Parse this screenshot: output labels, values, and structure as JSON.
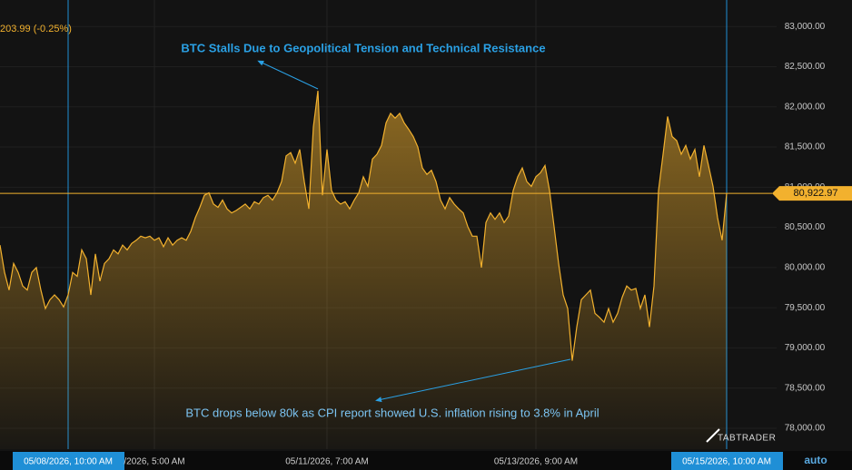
{
  "chart_data": {
    "type": "area",
    "change_text": "203.99 (-0.25%)",
    "annotations": [
      "BTC Stalls Due to Geopolitical Tension and Technical Resistance",
      "BTC drops below 80k as CPI report showed U.S. inflation rising to 3.8% in April"
    ],
    "brand": "TABTRADER",
    "scale_mode": "auto",
    "color": "#f2b12e",
    "values": [
      80280,
      79940,
      79720,
      80050,
      79940,
      79770,
      79720,
      79940,
      80000,
      79720,
      79490,
      79600,
      79660,
      79600,
      79510,
      79660,
      79940,
      79890,
      80220,
      80110,
      79660,
      80170,
      79830,
      80050,
      80110,
      80220,
      80170,
      80280,
      80220,
      80300,
      80340,
      80390,
      80370,
      80390,
      80340,
      80370,
      80260,
      80370,
      80280,
      80340,
      80370,
      80340,
      80450,
      80620,
      80750,
      80900,
      80930,
      80790,
      80750,
      80840,
      80730,
      80680,
      80710,
      80750,
      80790,
      80730,
      80820,
      80790,
      80870,
      80900,
      80840,
      80930,
      81070,
      81390,
      81430,
      81300,
      81470,
      81070,
      80730,
      81750,
      82200,
      80900,
      81470,
      80960,
      80840,
      80790,
      80820,
      80730,
      80840,
      80930,
      81130,
      81010,
      81350,
      81410,
      81520,
      81800,
      81920,
      81860,
      81920,
      81800,
      81720,
      81630,
      81500,
      81240,
      81160,
      81210,
      81070,
      80840,
      80730,
      80870,
      80790,
      80730,
      80680,
      80510,
      80390,
      80390,
      80000,
      80560,
      80680,
      80600,
      80680,
      80560,
      80640,
      80960,
      81130,
      81240,
      81070,
      81010,
      81130,
      81180,
      81270,
      80960,
      80510,
      80050,
      79660,
      79490,
      78840,
      79260,
      79600,
      79660,
      79720,
      79430,
      79380,
      79320,
      79490,
      79320,
      79430,
      79630,
      79770,
      79720,
      79740,
      79490,
      79660,
      79260,
      79770,
      80960,
      81410,
      81880,
      81630,
      81580,
      81410,
      81520,
      81350,
      81470,
      81130,
      81520,
      81270,
      81010,
      80620,
      80340,
      80922.97
    ],
    "current_price": {
      "value": 80922.97,
      "label": "80,922.97"
    },
    "xlim": [
      0,
      171
    ],
    "xticks": [
      {
        "value": 15,
        "label": "05/08/2026, 10:00 AM"
      },
      {
        "value": 34,
        "label": "/2026, 5:00 AM"
      },
      {
        "value": 72,
        "label": "05/11/2026, 7:00 AM"
      },
      {
        "value": 118,
        "label": "05/13/2026, 9:00 AM"
      },
      {
        "value": 160,
        "label": "05/15/2026, 10:00 AM"
      }
    ],
    "ylim": [
      77740,
      83330
    ],
    "yticks": [
      {
        "value": 78000,
        "label": "78,000.00"
      },
      {
        "value": 78500,
        "label": "78,500.00"
      },
      {
        "value": 79000,
        "label": "79,000.00"
      },
      {
        "value": 79500,
        "label": "79,500.00"
      },
      {
        "value": 80000,
        "label": "80,000.00"
      },
      {
        "value": 80500,
        "label": "80,500.00"
      },
      {
        "value": 81000,
        "label": "81,000.00"
      },
      {
        "value": 81500,
        "label": "81,500.00"
      },
      {
        "value": 82000,
        "label": "82,000.00"
      },
      {
        "value": 82500,
        "label": "82,500.00"
      },
      {
        "value": 83000,
        "label": "83,000.00"
      }
    ]
  }
}
